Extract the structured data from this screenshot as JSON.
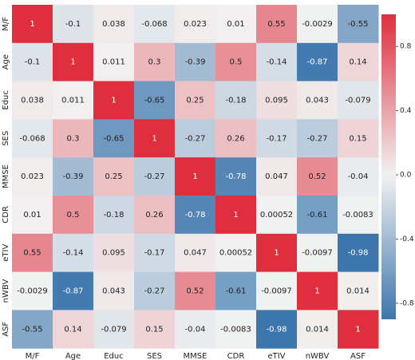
{
  "chart_data": {
    "type": "heatmap",
    "x": [
      "M/F",
      "Age",
      "Educ",
      "SES",
      "MMSE",
      "CDR",
      "eTIV",
      "nWBV",
      "ASF"
    ],
    "y": [
      "M/F",
      "Age",
      "Educ",
      "SES",
      "MMSE",
      "CDR",
      "eTIV",
      "nWBV",
      "ASF"
    ],
    "values": [
      [
        1,
        -0.1,
        0.038,
        -0.068,
        0.023,
        0.01,
        0.55,
        -0.0029,
        -0.55
      ],
      [
        -0.1,
        1,
        0.011,
        0.3,
        -0.39,
        0.5,
        -0.14,
        -0.87,
        0.14
      ],
      [
        0.038,
        0.011,
        1,
        -0.65,
        0.25,
        -0.18,
        0.095,
        0.043,
        -0.079
      ],
      [
        -0.068,
        0.3,
        -0.65,
        1,
        -0.27,
        0.26,
        -0.17,
        -0.27,
        0.15
      ],
      [
        0.023,
        -0.39,
        0.25,
        -0.27,
        1,
        -0.78,
        0.047,
        0.52,
        -0.04
      ],
      [
        0.01,
        0.5,
        -0.18,
        0.26,
        -0.78,
        1,
        0.00052,
        -0.61,
        -0.0083
      ],
      [
        0.55,
        -0.14,
        0.095,
        -0.17,
        0.047,
        0.00052,
        1,
        -0.0097,
        -0.98
      ],
      [
        -0.0029,
        -0.87,
        0.043,
        -0.27,
        0.52,
        -0.61,
        -0.0097,
        1,
        0.014
      ],
      [
        -0.55,
        0.14,
        -0.079,
        0.15,
        -0.04,
        -0.0083,
        -0.98,
        0.014,
        1
      ]
    ],
    "colors": [
      "#3d76ad",
      "#f1f1f1",
      "#df2f3e"
    ],
    "zlim": [
      -0.9,
      1
    ],
    "zticks": [
      0.8,
      0.4,
      {
        "value": 0,
        "label": "0.0"
      },
      -0.4,
      -0.8
    ]
  }
}
